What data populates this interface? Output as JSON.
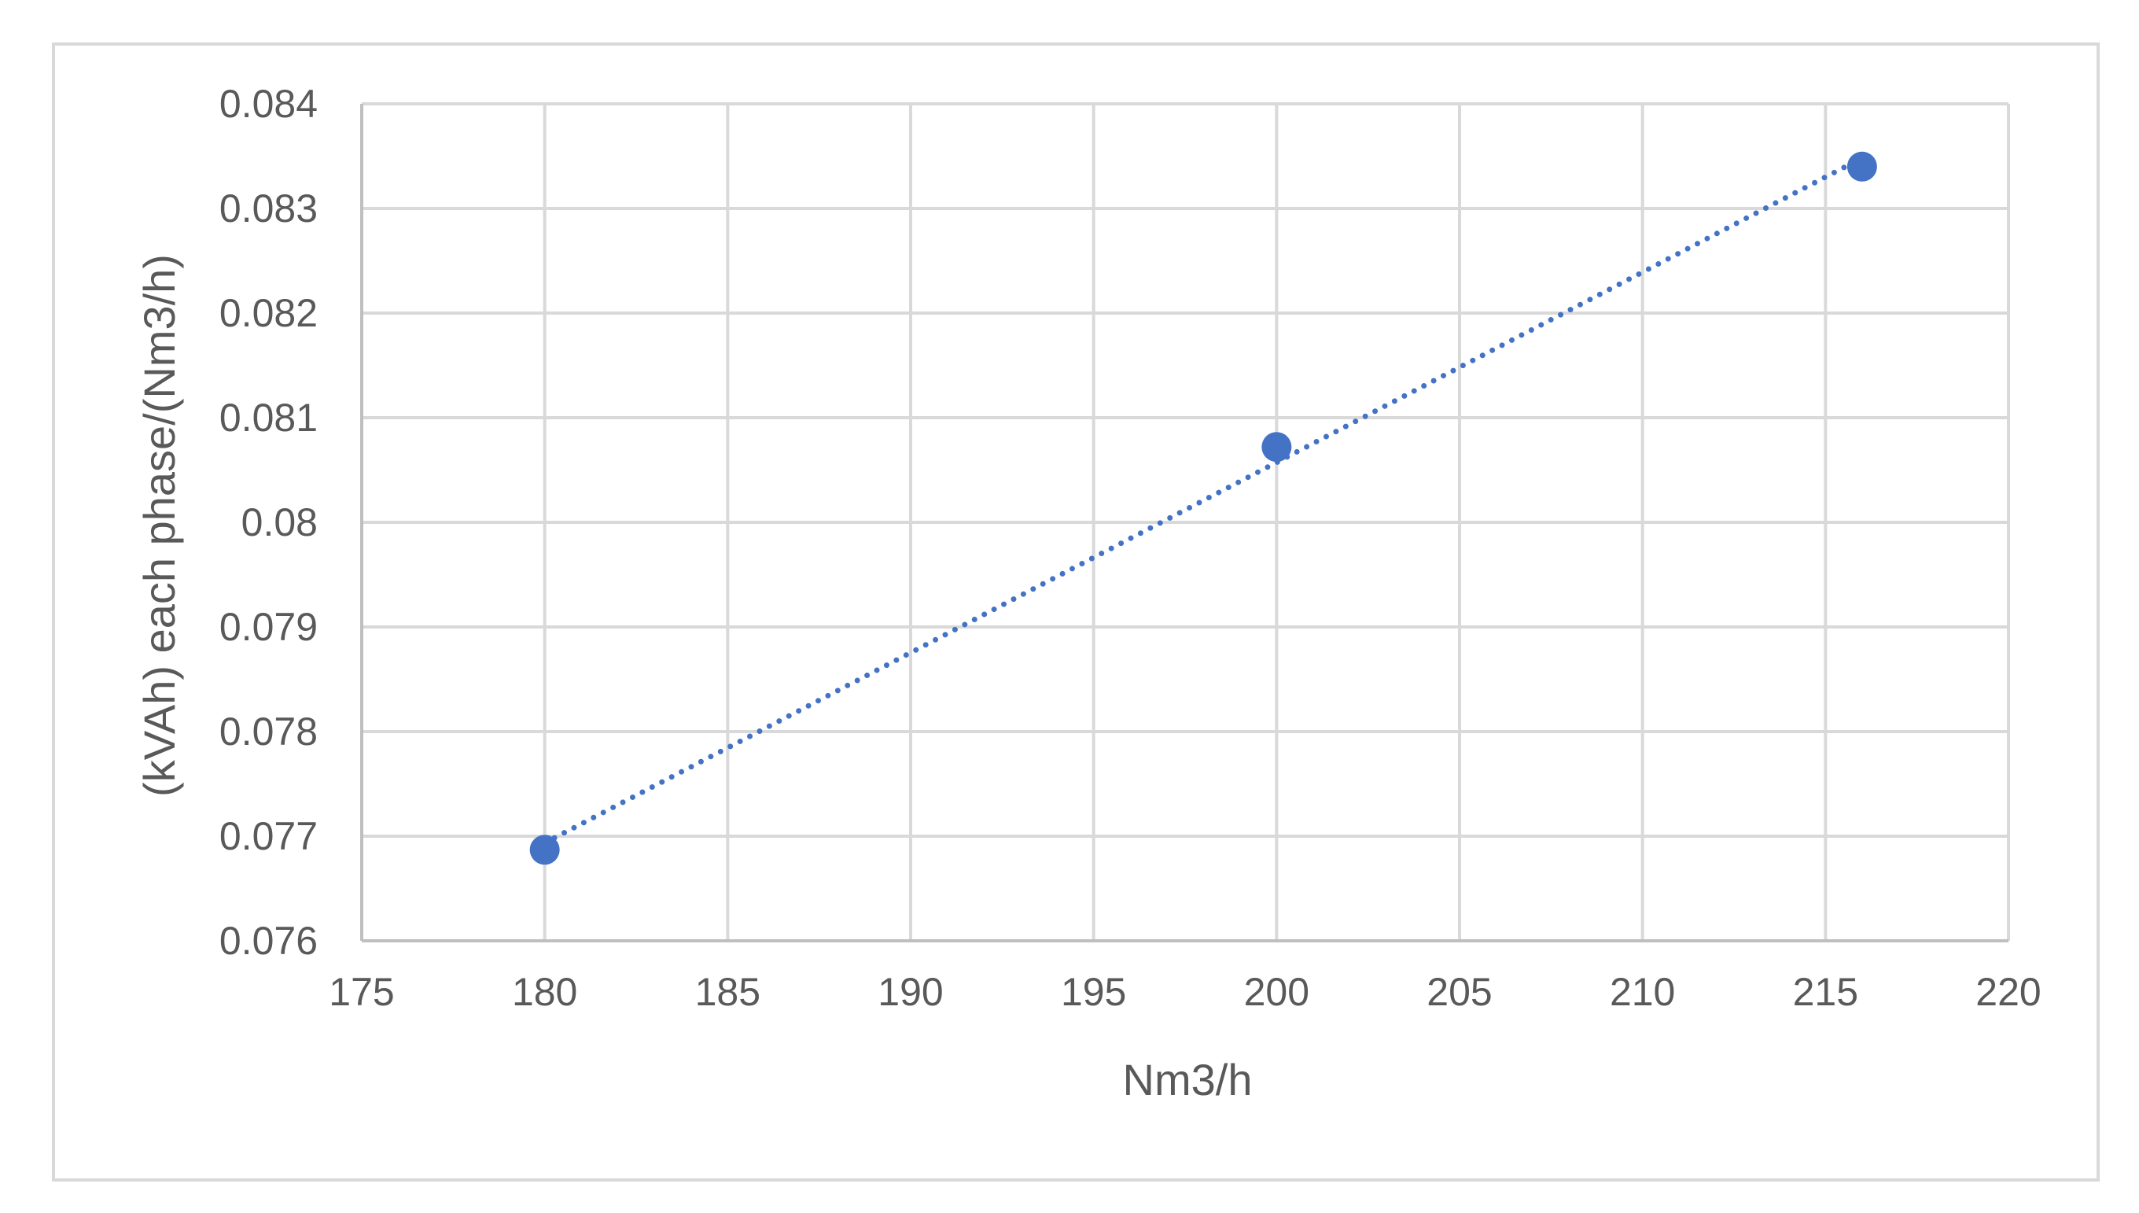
{
  "chart_data": {
    "type": "scatter",
    "title": "",
    "xlabel": "Nm3/h",
    "ylabel": "(kVAh) each phase/(Nm3/h)",
    "xlim": [
      175,
      220
    ],
    "ylim": [
      0.076,
      0.084
    ],
    "x_ticks": [
      "175",
      "180",
      "185",
      "190",
      "195",
      "200",
      "205",
      "210",
      "215",
      "220"
    ],
    "y_ticks": [
      "0.076",
      "0.077",
      "0.078",
      "0.079",
      "0.08",
      "0.081",
      "0.082",
      "0.083",
      "0.084"
    ],
    "grid": true,
    "legend": "none",
    "series": [
      {
        "x": [
          180,
          200,
          216
        ],
        "y": [
          0.07687,
          0.08072,
          0.0834
        ],
        "color": "#4472c4"
      }
    ],
    "trendline": {
      "type": "linear",
      "style": "dotted",
      "color": "#4472c4",
      "x_range": [
        180,
        216
      ]
    }
  }
}
